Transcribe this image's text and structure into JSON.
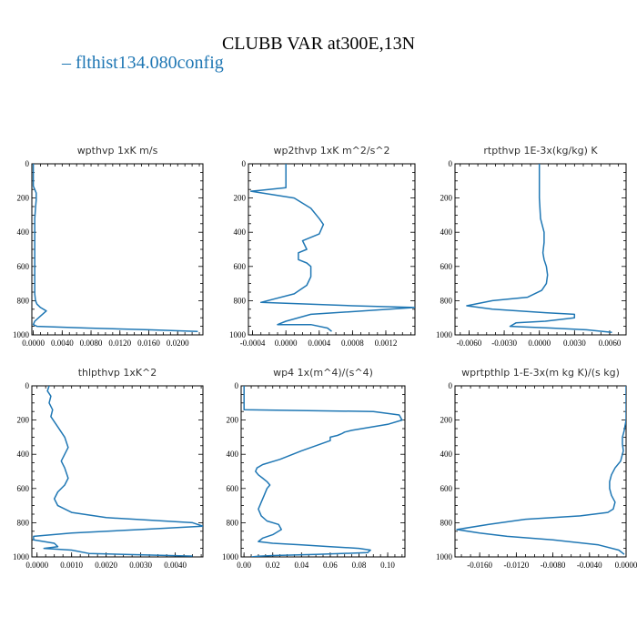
{
  "figure": {
    "title": "CLUBB VAR at300E,13N",
    "legend": [
      {
        "label": "– flthist134.080config",
        "color": "#1f77b4"
      }
    ]
  },
  "chart_data": [
    {
      "type": "line",
      "title": "wpthvp   1xK  m/s",
      "xlim": [
        -0.0002,
        0.0235
      ],
      "ylim": [
        1000,
        0
      ],
      "xticks": [
        0.0,
        0.004,
        0.008,
        0.012,
        0.016,
        0.02
      ],
      "xtick_labels": [
        "0.0000",
        "0.0040",
        "0.0080",
        "0.0120",
        "0.0160",
        "0.0200"
      ],
      "yticks": [
        0,
        200,
        400,
        600,
        800,
        1000
      ],
      "series": [
        {
          "color": "#1f77b4",
          "x": [
            0.0,
            0.0,
            0.0002,
            0.0004,
            0.0004,
            0.0003,
            0.0002,
            0.0002,
            0.0002,
            0.0002,
            0.0002,
            0.0002,
            0.0002,
            0.0003,
            0.0005,
            0.001,
            0.0018,
            0.001,
            0.0002,
            0.0,
            0.0005,
            0.0075,
            0.016,
            0.0228
          ],
          "y": [
            0,
            130,
            150,
            170,
            210,
            260,
            320,
            400,
            480,
            560,
            620,
            700,
            760,
            800,
            820,
            840,
            860,
            890,
            920,
            940,
            950,
            960,
            970,
            980
          ]
        }
      ]
    },
    {
      "type": "line",
      "title": "wp2thvp   1xK  m^2/s^2",
      "xlim": [
        -0.00045,
        0.00155
      ],
      "ylim": [
        1000,
        0
      ],
      "xticks": [
        -0.0004,
        0.0,
        0.0004,
        0.0008,
        0.0012
      ],
      "xtick_labels": [
        "-0.0004",
        "0.0000",
        "0.0004",
        "0.0008",
        "0.0012"
      ],
      "yticks": [
        0,
        200,
        400,
        600,
        800,
        1000
      ],
      "series": [
        {
          "color": "#1f77b4",
          "x": [
            0.0,
            0.0,
            -0.0003,
            -0.00042,
            0.0001,
            0.0003,
            0.0004,
            0.00045,
            0.0004,
            0.0002,
            0.00025,
            0.00015,
            0.00015,
            0.00025,
            0.0003,
            0.0003,
            0.00025,
            0.0001,
            -0.0003,
            0.0008,
            0.00155,
            0.0003,
            0.0,
            -0.0001,
            0.0003,
            0.0005,
            0.00055
          ],
          "y": [
            0,
            140,
            155,
            160,
            200,
            260,
            320,
            355,
            410,
            450,
            500,
            520,
            560,
            580,
            600,
            660,
            710,
            760,
            810,
            830,
            840,
            880,
            920,
            940,
            940,
            960,
            980
          ]
        }
      ]
    },
    {
      "type": "line",
      "title": "rtpthvp   1E-3x(kg/kg)  K",
      "xlim": [
        -0.0072,
        0.0074
      ],
      "ylim": [
        1000,
        0
      ],
      "xticks": [
        -0.006,
        -0.003,
        0.0,
        0.003,
        0.006
      ],
      "xtick_labels": [
        "-0.0060",
        "-0.0030",
        "0.0000",
        "0.0030",
        "0.0060"
      ],
      "yticks": [
        0,
        200,
        400,
        600,
        800,
        1000
      ],
      "series": [
        {
          "color": "#1f77b4",
          "x": [
            0.0,
            0.0,
            0.0001,
            0.0004,
            0.0004,
            0.0003,
            0.0004,
            0.0006,
            0.0007,
            0.0006,
            0.0002,
            -0.001,
            -0.004,
            -0.0062,
            -0.004,
            0.0005,
            0.003,
            0.003,
            0.0005,
            -0.002,
            -0.0025,
            0.001,
            0.004,
            0.0062
          ],
          "y": [
            0,
            200,
            320,
            400,
            460,
            520,
            560,
            600,
            650,
            700,
            740,
            780,
            800,
            830,
            850,
            870,
            880,
            900,
            920,
            930,
            950,
            960,
            970,
            985
          ]
        }
      ]
    },
    {
      "type": "line",
      "title": "thlpthvp   1xK^2",
      "xlim": [
        -0.00015,
        0.0048
      ],
      "ylim": [
        1000,
        0
      ],
      "xticks": [
        0.0,
        0.001,
        0.002,
        0.003,
        0.004
      ],
      "xtick_labels": [
        "0.0000",
        "0.0010",
        "0.0020",
        "0.0030",
        "0.0040"
      ],
      "yticks": [
        0,
        200,
        400,
        600,
        800,
        1000
      ],
      "series": [
        {
          "color": "#1f77b4",
          "x": [
            0.00035,
            0.0003,
            0.0004,
            0.00035,
            0.00045,
            0.0004,
            0.0006,
            0.0008,
            0.0009,
            0.0008,
            0.0007,
            0.0008,
            0.0009,
            0.0008,
            0.0006,
            0.0005,
            0.0006,
            0.001,
            0.002,
            0.0045,
            0.0048,
            0.003,
            0.001,
            -0.0001,
            -0.0001,
            0.0005,
            0.0006,
            0.0002,
            0.001,
            0.0015,
            0.0045
          ],
          "y": [
            0,
            30,
            60,
            100,
            140,
            180,
            240,
            300,
            360,
            400,
            440,
            480,
            540,
            580,
            620,
            660,
            700,
            740,
            770,
            800,
            820,
            840,
            860,
            880,
            900,
            920,
            940,
            950,
            960,
            980,
            995
          ]
        }
      ]
    },
    {
      "type": "line",
      "title": "wp4   1x(m^4)/(s^4)",
      "xlim": [
        -0.002,
        0.112
      ],
      "ylim": [
        1000,
        0
      ],
      "xticks": [
        0.0,
        0.02,
        0.04,
        0.06,
        0.08,
        0.1
      ],
      "xtick_labels": [
        "0.00",
        "0.02",
        "0.04",
        "0.06",
        "0.08",
        "0.10"
      ],
      "yticks": [
        0,
        200,
        400,
        600,
        800,
        1000
      ],
      "series": [
        {
          "color": "#1f77b4",
          "x": [
            0.0,
            0.0,
            0.0,
            0.09,
            0.108,
            0.11,
            0.1,
            0.075,
            0.07,
            0.068,
            0.065,
            0.06,
            0.06,
            0.04,
            0.025,
            0.013,
            0.009,
            0.008,
            0.01,
            0.013,
            0.016,
            0.018,
            0.016,
            0.014,
            0.012,
            0.01,
            0.012,
            0.016,
            0.024,
            0.026,
            0.02,
            0.013,
            0.01,
            0.02,
            0.04,
            0.06,
            0.08,
            0.088,
            0.086,
            0.05,
            0.02,
            0.01,
            0.005
          ],
          "y": [
            0,
            100,
            140,
            150,
            170,
            200,
            225,
            260,
            270,
            280,
            290,
            300,
            320,
            380,
            430,
            460,
            480,
            500,
            520,
            540,
            560,
            580,
            600,
            640,
            680,
            720,
            760,
            790,
            810,
            840,
            870,
            890,
            910,
            920,
            930,
            940,
            950,
            960,
            975,
            985,
            992,
            996,
            1000
          ]
        }
      ]
    },
    {
      "type": "line",
      "title": "wprtpthlp   1-E-3x(m kg K)/(s kg)",
      "xlim": [
        -0.0187,
        0.0
      ],
      "ylim": [
        1000,
        0
      ],
      "xticks": [
        -0.016,
        -0.012,
        -0.008,
        -0.004,
        0.0
      ],
      "xtick_labels": [
        "-0.0160",
        "-0.0120",
        "-0.0080",
        "-0.0040",
        "0.0000"
      ],
      "yticks": [
        0,
        200,
        400,
        600,
        800,
        1000
      ],
      "series": [
        {
          "color": "#1f77b4",
          "x": [
            0.0,
            0.0,
            -0.0002,
            -0.0004,
            -0.0004,
            -0.0003,
            -0.0006,
            -0.0012,
            -0.0016,
            -0.0018,
            -0.0018,
            -0.0016,
            -0.0012,
            -0.0014,
            -0.002,
            -0.005,
            -0.011,
            -0.015,
            -0.0185,
            -0.016,
            -0.013,
            -0.008,
            -0.003,
            -0.0008,
            -0.0002
          ],
          "y": [
            0,
            200,
            260,
            300,
            340,
            380,
            440,
            480,
            520,
            560,
            600,
            640,
            680,
            720,
            740,
            760,
            780,
            810,
            840,
            860,
            880,
            900,
            930,
            960,
            985
          ]
        }
      ]
    }
  ]
}
